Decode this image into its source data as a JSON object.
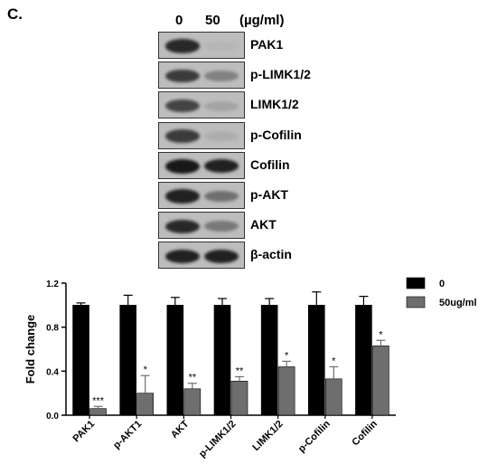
{
  "panel_label": "C.",
  "western_blot": {
    "concentrations": [
      "0",
      "50"
    ],
    "unit": "(µg/ml)",
    "rows": [
      {
        "label": "PAK1",
        "lane0": 0.85,
        "lane1": 0.05
      },
      {
        "label": "p-LIMK1/2",
        "lane0": 0.75,
        "lane1": 0.35
      },
      {
        "label": "LIMK1/2",
        "lane0": 0.7,
        "lane1": 0.15
      },
      {
        "label": "p-Cofilin",
        "lane0": 0.75,
        "lane1": 0.1
      },
      {
        "label": "Cofilin",
        "lane0": 0.95,
        "lane1": 0.9
      },
      {
        "label": "p-AKT",
        "lane0": 0.9,
        "lane1": 0.45
      },
      {
        "label": "AKT",
        "lane0": 0.85,
        "lane1": 0.4
      },
      {
        "label": "β-actin",
        "lane0": 0.9,
        "lane1": 0.9
      }
    ]
  },
  "chart_data": {
    "type": "bar",
    "categories": [
      "PAK1",
      "p-AKT1",
      "AKT",
      "p-LIMK1/2",
      "LIMK1/2",
      "p-Cofilin",
      "Cofilin"
    ],
    "ylabel": "Fold change",
    "xlabel": "",
    "ylim": [
      0,
      1.2
    ],
    "yticks": [
      "0.0",
      "0.4",
      "0.8",
      "1.2"
    ],
    "legend_position": "top-right",
    "series": [
      {
        "name": "0",
        "color": "#000000",
        "values": [
          1.0,
          1.0,
          1.0,
          1.0,
          1.0,
          1.0,
          1.0
        ],
        "errors": [
          0.02,
          0.09,
          0.07,
          0.06,
          0.06,
          0.12,
          0.08
        ]
      },
      {
        "name": "50ug/ml",
        "color": "#6e6e6e",
        "values": [
          0.06,
          0.2,
          0.24,
          0.31,
          0.44,
          0.33,
          0.63
        ],
        "errors": [
          0.02,
          0.16,
          0.05,
          0.04,
          0.05,
          0.11,
          0.05
        ]
      }
    ],
    "significance": [
      "***",
      "*",
      "**",
      "**",
      "*",
      "*",
      "*"
    ]
  }
}
